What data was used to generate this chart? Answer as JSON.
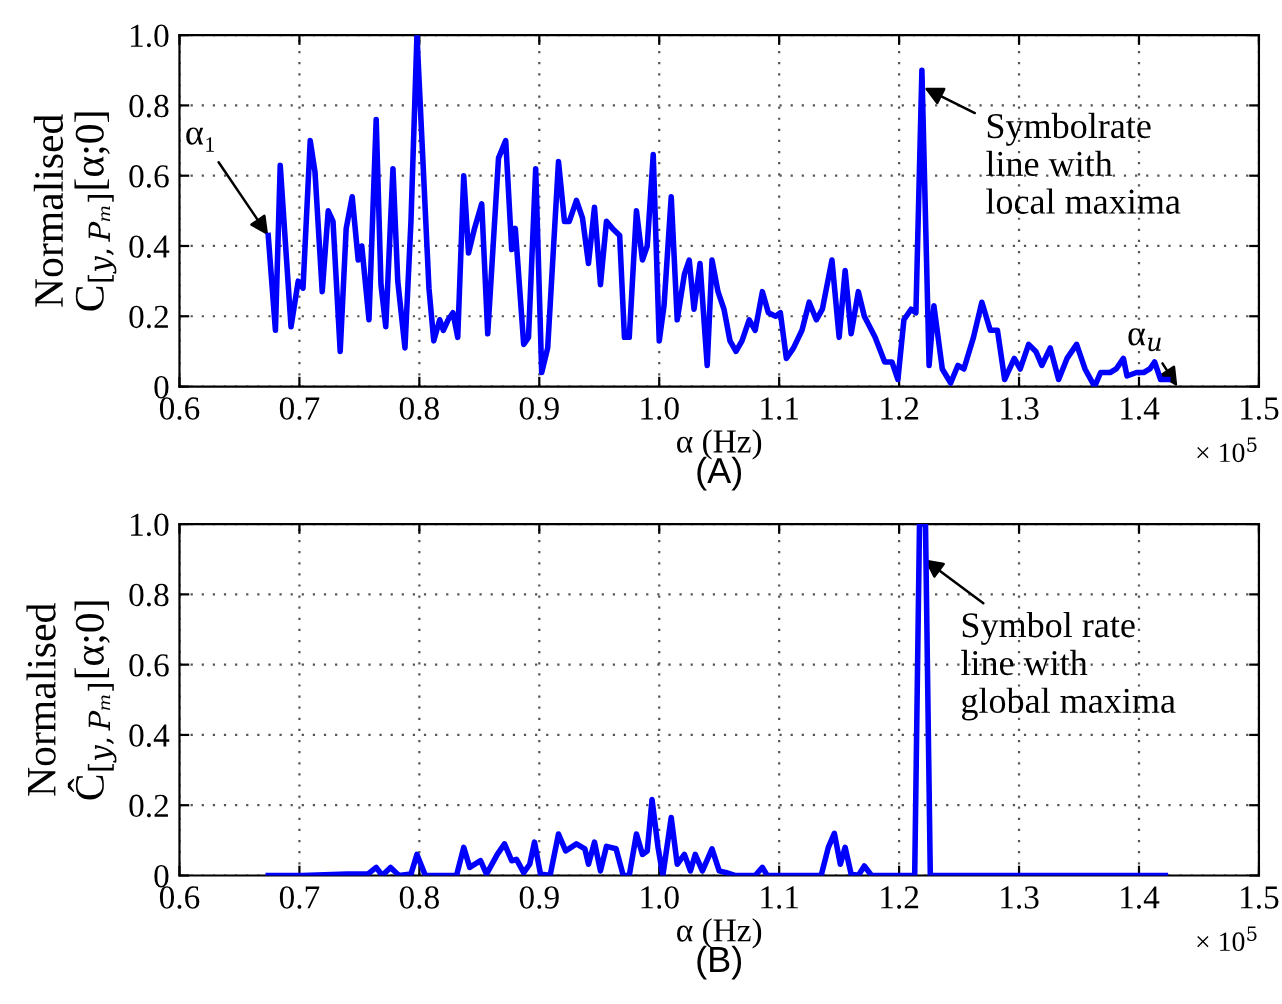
{
  "chart_data": [
    {
      "type": "line",
      "xlabel": "α (Hz)",
      "ylabel": "Normalised\nC$_{[y,Pₘ]}$[α;0]",
      "xlim": [
        0.6,
        1.5
      ],
      "xticks": [
        {
          "value": 0.6,
          "label": "0.6"
        },
        {
          "value": 0.7,
          "label": "0.7"
        },
        {
          "value": 0.8,
          "label": "0.8"
        },
        {
          "value": 0.9,
          "label": "0.9"
        },
        {
          "value": 1.0,
          "label": "1.0"
        },
        {
          "value": 1.1,
          "label": "1.1"
        },
        {
          "value": 1.2,
          "label": "1.2"
        },
        {
          "value": 1.3,
          "label": "1.3"
        },
        {
          "value": 1.4,
          "label": "1.4"
        },
        {
          "value": 1.5,
          "label": "1.5"
        }
      ],
      "ylim": [
        0,
        1.0
      ],
      "yticks": [
        0,
        {
          "value": 0.2,
          "label": "0.2"
        },
        {
          "value": 0.4,
          "label": "0.4"
        },
        {
          "value": 0.6,
          "label": "0.6"
        },
        {
          "value": 0.8,
          "label": "0.8"
        },
        {
          "value": 1.0,
          "label": "1.0"
        }
      ],
      "grid": true,
      "marker": "none",
      "line_style": "solid",
      "series": [
        {
          "color": "#0000ff",
          "x": [
            0.674,
            0.68,
            0.684,
            0.693,
            0.699,
            0.703,
            0.709,
            0.713,
            0.719,
            0.724,
            0.728,
            0.734,
            0.739,
            0.744,
            0.749,
            0.752,
            0.758,
            0.764,
            0.768,
            0.772,
            0.778,
            0.782,
            0.788,
            0.793,
            0.798,
            0.808,
            0.812,
            0.817,
            0.82,
            0.824,
            0.828,
            0.832,
            0.837,
            0.841,
            0.846,
            0.852,
            0.857,
            0.866,
            0.872,
            0.877,
            0.88,
            0.887,
            0.891,
            0.897,
            0.902,
            0.907,
            0.916,
            0.921,
            0.925,
            0.931,
            0.936,
            0.941,
            0.946,
            0.951,
            0.956,
            0.961,
            0.967,
            0.971,
            0.975,
            0.981,
            0.986,
            0.99,
            0.995,
            1.0,
            1.004,
            1.01,
            1.015,
            1.021,
            1.025,
            1.029,
            1.034,
            1.04,
            1.044,
            1.049,
            1.054,
            1.059,
            1.064,
            1.069,
            1.075,
            1.08,
            1.086,
            1.091,
            1.097,
            1.101,
            1.106,
            1.112,
            1.119,
            1.125,
            1.131,
            1.136,
            1.144,
            1.15,
            1.155,
            1.16,
            1.166,
            1.171,
            1.18,
            1.188,
            1.194,
            1.199,
            1.204,
            1.21,
            1.214,
            1.219,
            1.225,
            1.229,
            1.236,
            1.243,
            1.249,
            1.254,
            1.262,
            1.269,
            1.276,
            1.282,
            1.288,
            1.296,
            1.301,
            1.308,
            1.314,
            1.319,
            1.326,
            1.333,
            1.34,
            1.348,
            1.355,
            1.363,
            1.368,
            1.376,
            1.381,
            1.387,
            1.39,
            1.398,
            1.404,
            1.409,
            1.413,
            1.418,
            1.424
          ],
          "values": [
            0.43,
            0.16,
            0.63,
            0.17,
            0.3,
            0.28,
            0.7,
            0.61,
            0.27,
            0.5,
            0.47,
            0.1,
            0.45,
            0.54,
            0.36,
            0.4,
            0.19,
            0.76,
            0.29,
            0.17,
            0.62,
            0.3,
            0.11,
            0.47,
            1.0,
            0.28,
            0.13,
            0.19,
            0.16,
            0.19,
            0.21,
            0.14,
            0.6,
            0.38,
            0.45,
            0.52,
            0.15,
            0.65,
            0.7,
            0.39,
            0.45,
            0.12,
            0.14,
            0.62,
            0.04,
            0.11,
            0.64,
            0.47,
            0.47,
            0.53,
            0.48,
            0.35,
            0.51,
            0.29,
            0.47,
            0.45,
            0.43,
            0.14,
            0.14,
            0.5,
            0.36,
            0.4,
            0.66,
            0.13,
            0.23,
            0.54,
            0.19,
            0.32,
            0.36,
            0.22,
            0.35,
            0.06,
            0.36,
            0.27,
            0.22,
            0.13,
            0.1,
            0.13,
            0.19,
            0.16,
            0.27,
            0.21,
            0.2,
            0.21,
            0.08,
            0.11,
            0.16,
            0.24,
            0.19,
            0.22,
            0.36,
            0.14,
            0.33,
            0.15,
            0.27,
            0.2,
            0.14,
            0.07,
            0.07,
            0.02,
            0.19,
            0.22,
            0.21,
            0.9,
            0.06,
            0.23,
            0.05,
            0.01,
            0.06,
            0.05,
            0.14,
            0.24,
            0.16,
            0.16,
            0.02,
            0.08,
            0.05,
            0.12,
            0.1,
            0.06,
            0.11,
            0.02,
            0.08,
            0.12,
            0.05,
            0.0,
            0.04,
            0.04,
            0.05,
            0.08,
            0.03,
            0.04,
            0.04,
            0.05,
            0.07,
            0.02,
            0.02
          ]
        }
      ],
      "annotations": [
        {
          "text": "α₁",
          "x": 0.674,
          "y": 0.43
        },
        {
          "text": "Symbolrate\nline with\nlocal maxima",
          "x": 1.221,
          "y": 0.85
        },
        {
          "text": "α$_{u}$",
          "x": 1.432,
          "y": 0.0
        },
        "× 10$^{5}$",
        "(A)"
      ]
    },
    {
      "type": "line",
      "xlabel": "α (Hz)",
      "ylabel": "Normalised\nĈ$_{[y,Pₘ]}$[α;0]",
      "xlim": [
        0.6,
        1.5
      ],
      "xticks": [
        {
          "value": 0.6,
          "label": "0.6"
        },
        {
          "value": 0.7,
          "label": "0.7"
        },
        {
          "value": 0.8,
          "label": "0.8"
        },
        {
          "value": 0.9,
          "label": "0.9"
        },
        {
          "value": 1.0,
          "label": "1.0"
        },
        {
          "value": 1.1,
          "label": "1.1"
        },
        {
          "value": 1.2,
          "label": "1.2"
        },
        {
          "value": 1.3,
          "label": "1.3"
        },
        {
          "value": 1.4,
          "label": "1.4"
        },
        {
          "value": 1.5,
          "label": "1.5"
        }
      ],
      "ylim": [
        0,
        1.0
      ],
      "yticks": [
        0,
        {
          "value": 0.2,
          "label": "0.2"
        },
        {
          "value": 0.4,
          "label": "0.4"
        },
        {
          "value": 0.6,
          "label": "0.6"
        },
        {
          "value": 0.8,
          "label": "0.8"
        },
        {
          "value": 1.0,
          "label": "1.0"
        }
      ],
      "grid": true,
      "marker": "none",
      "line_style": "solid",
      "series": [
        {
          "color": "#0000ff",
          "x": [
            0.674,
            0.702,
            0.74,
            0.757,
            0.764,
            0.769,
            0.776,
            0.783,
            0.793,
            0.798,
            0.805,
            0.831,
            0.837,
            0.842,
            0.851,
            0.856,
            0.865,
            0.871,
            0.877,
            0.881,
            0.887,
            0.892,
            0.896,
            0.901,
            0.909,
            0.916,
            0.922,
            0.931,
            0.938,
            0.941,
            0.946,
            0.951,
            0.956,
            0.964,
            0.97,
            0.975,
            0.981,
            0.986,
            0.99,
            0.994,
            0.999,
            1.003,
            1.01,
            1.015,
            1.021,
            1.026,
            1.03,
            1.036,
            1.044,
            1.05,
            1.056,
            1.063,
            1.08,
            1.086,
            1.09,
            1.135,
            1.141,
            1.146,
            1.151,
            1.155,
            1.16,
            1.166,
            1.171,
            1.177,
            1.213,
            1.217,
            1.222,
            1.226,
            1.422
          ],
          "values": [
            0,
            0,
            0.004,
            0.004,
            0.023,
            0,
            0.023,
            0,
            0.004,
            0.06,
            0,
            0,
            0.08,
            0.023,
            0.042,
            0.004,
            0.06,
            0.09,
            0.042,
            0.046,
            0.008,
            0.032,
            0.095,
            0.004,
            0,
            0.118,
            0.07,
            0.09,
            0.076,
            0.032,
            0.095,
            0.013,
            0.083,
            0.076,
            0,
            0,
            0.118,
            0.06,
            0.07,
            0.216,
            0.08,
            0,
            0.165,
            0.032,
            0.06,
            0.013,
            0.06,
            0.013,
            0.076,
            0.013,
            0.008,
            0,
            0,
            0.023,
            0,
            0,
            0.08,
            0.12,
            0.032,
            0.08,
            0.004,
            0,
            0.027,
            0,
            0,
            1.0,
            1.0,
            0,
            0
          ]
        }
      ],
      "annotations": [
        {
          "text": "Symbol rate\nline with\nglobal maxima",
          "x": 1.221,
          "y": 0.9
        },
        "× 10$^{5}$",
        "(B)"
      ]
    }
  ]
}
